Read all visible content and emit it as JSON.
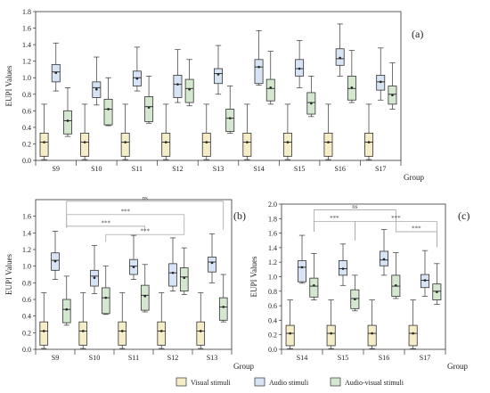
{
  "figure": {
    "legend": [
      {
        "name": "Visual stimuli",
        "color": "#f5edc8"
      },
      {
        "name": "Audio stimuli",
        "color": "#d6e4f5"
      },
      {
        "name": "Audio-visual stimuli",
        "color": "#d3e8cf"
      }
    ]
  },
  "chart_data": [
    {
      "type": "box",
      "panel_label": "(a)",
      "ylabel": "EUPI Values",
      "xlabel": "Group",
      "ylim": [
        0,
        1.8
      ],
      "yticks": [
        0.0,
        0.2,
        0.4,
        0.6,
        0.8,
        1.0,
        1.2,
        1.4,
        1.6,
        1.8
      ],
      "categories": [
        "S9",
        "S10",
        "S11",
        "S12",
        "S13",
        "S14",
        "S15",
        "S16",
        "S17"
      ],
      "series": [
        {
          "name": "Visual stimuli",
          "boxes": [
            {
              "min": 0.01,
              "q1": 0.05,
              "median": 0.22,
              "q3": 0.33,
              "max": 0.68,
              "mean": 0.22
            },
            {
              "min": 0.01,
              "q1": 0.05,
              "median": 0.22,
              "q3": 0.33,
              "max": 0.68,
              "mean": 0.22
            },
            {
              "min": 0.01,
              "q1": 0.05,
              "median": 0.22,
              "q3": 0.33,
              "max": 0.68,
              "mean": 0.22
            },
            {
              "min": 0.01,
              "q1": 0.05,
              "median": 0.22,
              "q3": 0.33,
              "max": 0.68,
              "mean": 0.22
            },
            {
              "min": 0.01,
              "q1": 0.05,
              "median": 0.22,
              "q3": 0.33,
              "max": 0.68,
              "mean": 0.22
            },
            {
              "min": 0.01,
              "q1": 0.05,
              "median": 0.22,
              "q3": 0.33,
              "max": 0.68,
              "mean": 0.22
            },
            {
              "min": 0.01,
              "q1": 0.05,
              "median": 0.22,
              "q3": 0.33,
              "max": 0.68,
              "mean": 0.22
            },
            {
              "min": 0.01,
              "q1": 0.05,
              "median": 0.22,
              "q3": 0.33,
              "max": 0.68,
              "mean": 0.22
            },
            {
              "min": 0.01,
              "q1": 0.05,
              "median": 0.22,
              "q3": 0.33,
              "max": 0.68,
              "mean": 0.22
            }
          ]
        },
        {
          "name": "Audio stimuli",
          "boxes": [
            {
              "min": 0.84,
              "q1": 0.95,
              "median": 1.07,
              "q3": 1.16,
              "max": 1.42,
              "mean": 1.06
            },
            {
              "min": 0.67,
              "q1": 0.76,
              "median": 0.88,
              "q3": 0.95,
              "max": 1.25,
              "mean": 0.86
            },
            {
              "min": 0.84,
              "q1": 0.9,
              "median": 1.0,
              "q3": 1.08,
              "max": 1.37,
              "mean": 0.99
            },
            {
              "min": 0.7,
              "q1": 0.76,
              "median": 0.92,
              "q3": 1.03,
              "max": 1.34,
              "mean": 0.92
            },
            {
              "min": 0.8,
              "q1": 0.93,
              "median": 1.05,
              "q3": 1.11,
              "max": 1.39,
              "mean": 1.04
            },
            {
              "min": 0.91,
              "q1": 0.93,
              "median": 1.13,
              "q3": 1.22,
              "max": 1.57,
              "mean": 1.13
            },
            {
              "min": 0.88,
              "q1": 1.02,
              "median": 1.11,
              "q3": 1.22,
              "max": 1.45,
              "mean": 1.11
            },
            {
              "min": 1.02,
              "q1": 1.15,
              "median": 1.23,
              "q3": 1.35,
              "max": 1.65,
              "mean": 1.24
            },
            {
              "min": 0.73,
              "q1": 0.85,
              "median": 0.95,
              "q3": 1.03,
              "max": 1.36,
              "mean": 0.95
            }
          ]
        },
        {
          "name": "Audio-visual stimuli",
          "boxes": [
            {
              "min": 0.29,
              "q1": 0.32,
              "median": 0.48,
              "q3": 0.6,
              "max": 0.88,
              "mean": 0.48
            },
            {
              "min": 0.42,
              "q1": 0.43,
              "median": 0.62,
              "q3": 0.74,
              "max": 1.0,
              "mean": 0.62
            },
            {
              "min": 0.45,
              "q1": 0.47,
              "median": 0.65,
              "q3": 0.77,
              "max": 1.02,
              "mean": 0.64
            },
            {
              "min": 0.66,
              "q1": 0.7,
              "median": 0.87,
              "q3": 0.98,
              "max": 1.22,
              "mean": 0.86
            },
            {
              "min": 0.33,
              "q1": 0.35,
              "median": 0.51,
              "q3": 0.62,
              "max": 0.9,
              "mean": 0.51
            },
            {
              "min": 0.68,
              "q1": 0.72,
              "median": 0.87,
              "q3": 0.98,
              "max": 1.32,
              "mean": 0.88
            },
            {
              "min": 0.53,
              "q1": 0.56,
              "median": 0.7,
              "q3": 0.82,
              "max": 1.02,
              "mean": 0.69
            },
            {
              "min": 0.7,
              "q1": 0.73,
              "median": 0.87,
              "q3": 1.02,
              "max": 1.33,
              "mean": 0.88
            },
            {
              "min": 0.62,
              "q1": 0.68,
              "median": 0.8,
              "q3": 0.9,
              "max": 1.18,
              "mean": 0.79
            }
          ]
        }
      ]
    },
    {
      "type": "box",
      "panel_label": "(b)",
      "ylabel": "EUPI Values",
      "xlabel": "Group",
      "ylim": [
        0,
        1.8
      ],
      "yticks": [
        0.0,
        0.2,
        0.4,
        0.6,
        0.8,
        1.0,
        1.2,
        1.4,
        1.6
      ],
      "categories": [
        "S9",
        "S10",
        "S11",
        "S12",
        "S13"
      ],
      "series": [
        {
          "name": "Visual stimuli",
          "boxes": [
            {
              "min": 0.01,
              "q1": 0.05,
              "median": 0.22,
              "q3": 0.33,
              "max": 0.68,
              "mean": 0.22
            },
            {
              "min": 0.01,
              "q1": 0.05,
              "median": 0.22,
              "q3": 0.33,
              "max": 0.68,
              "mean": 0.22
            },
            {
              "min": 0.01,
              "q1": 0.05,
              "median": 0.22,
              "q3": 0.33,
              "max": 0.68,
              "mean": 0.22
            },
            {
              "min": 0.01,
              "q1": 0.05,
              "median": 0.22,
              "q3": 0.33,
              "max": 0.68,
              "mean": 0.22
            },
            {
              "min": 0.01,
              "q1": 0.05,
              "median": 0.22,
              "q3": 0.33,
              "max": 0.68,
              "mean": 0.22
            }
          ]
        },
        {
          "name": "Audio stimuli",
          "boxes": [
            {
              "min": 0.84,
              "q1": 0.95,
              "median": 1.07,
              "q3": 1.16,
              "max": 1.42,
              "mean": 1.06
            },
            {
              "min": 0.67,
              "q1": 0.76,
              "median": 0.88,
              "q3": 0.95,
              "max": 1.25,
              "mean": 0.86
            },
            {
              "min": 0.84,
              "q1": 0.9,
              "median": 1.0,
              "q3": 1.08,
              "max": 1.37,
              "mean": 0.99
            },
            {
              "min": 0.7,
              "q1": 0.76,
              "median": 0.92,
              "q3": 1.03,
              "max": 1.34,
              "mean": 0.92
            },
            {
              "min": 0.8,
              "q1": 0.93,
              "median": 1.05,
              "q3": 1.11,
              "max": 1.39,
              "mean": 1.04
            }
          ]
        },
        {
          "name": "Audio-visual stimuli",
          "boxes": [
            {
              "min": 0.29,
              "q1": 0.32,
              "median": 0.48,
              "q3": 0.6,
              "max": 0.88,
              "mean": 0.48
            },
            {
              "min": 0.42,
              "q1": 0.43,
              "median": 0.62,
              "q3": 0.74,
              "max": 1.0,
              "mean": 0.62
            },
            {
              "min": 0.45,
              "q1": 0.47,
              "median": 0.65,
              "q3": 0.77,
              "max": 1.02,
              "mean": 0.64
            },
            {
              "min": 0.66,
              "q1": 0.7,
              "median": 0.87,
              "q3": 0.98,
              "max": 1.22,
              "mean": 0.86
            },
            {
              "min": 0.33,
              "q1": 0.35,
              "median": 0.51,
              "q3": 0.62,
              "max": 0.9,
              "mean": 0.51
            }
          ]
        }
      ],
      "significance": [
        {
          "from": 0,
          "to": 4,
          "label": "ns",
          "level": 1.78
        },
        {
          "from": 0,
          "to": 3,
          "label": "***",
          "level": 1.62
        },
        {
          "from": 0,
          "to": 2,
          "label": "***",
          "level": 1.48
        },
        {
          "from": 1,
          "to": 3,
          "label": "***",
          "level": 1.38
        }
      ]
    },
    {
      "type": "box",
      "panel_label": "(c)",
      "ylabel": "EUPI Values",
      "xlabel": "Group",
      "ylim": [
        0,
        2.0
      ],
      "yticks": [
        0.0,
        0.2,
        0.4,
        0.6,
        0.8,
        1.0,
        1.2,
        1.4,
        1.6,
        1.8,
        2.0
      ],
      "categories": [
        "S14",
        "S15",
        "S16",
        "S17"
      ],
      "series": [
        {
          "name": "Visual stimuli",
          "boxes": [
            {
              "min": 0.01,
              "q1": 0.05,
              "median": 0.22,
              "q3": 0.33,
              "max": 0.68,
              "mean": 0.22
            },
            {
              "min": 0.01,
              "q1": 0.05,
              "median": 0.22,
              "q3": 0.33,
              "max": 0.68,
              "mean": 0.22
            },
            {
              "min": 0.01,
              "q1": 0.05,
              "median": 0.22,
              "q3": 0.33,
              "max": 0.68,
              "mean": 0.22
            },
            {
              "min": 0.01,
              "q1": 0.05,
              "median": 0.22,
              "q3": 0.33,
              "max": 0.68,
              "mean": 0.22
            }
          ]
        },
        {
          "name": "Audio stimuli",
          "boxes": [
            {
              "min": 0.91,
              "q1": 0.93,
              "median": 1.13,
              "q3": 1.22,
              "max": 1.57,
              "mean": 1.13
            },
            {
              "min": 0.88,
              "q1": 1.02,
              "median": 1.11,
              "q3": 1.22,
              "max": 1.45,
              "mean": 1.11
            },
            {
              "min": 1.02,
              "q1": 1.15,
              "median": 1.23,
              "q3": 1.35,
              "max": 1.65,
              "mean": 1.24
            },
            {
              "min": 0.73,
              "q1": 0.85,
              "median": 0.95,
              "q3": 1.03,
              "max": 1.36,
              "mean": 0.95
            }
          ]
        },
        {
          "name": "Audio-visual stimuli",
          "boxes": [
            {
              "min": 0.68,
              "q1": 0.72,
              "median": 0.87,
              "q3": 0.98,
              "max": 1.32,
              "mean": 0.88
            },
            {
              "min": 0.53,
              "q1": 0.56,
              "median": 0.7,
              "q3": 0.82,
              "max": 1.02,
              "mean": 0.69
            },
            {
              "min": 0.7,
              "q1": 0.73,
              "median": 0.87,
              "q3": 1.02,
              "max": 1.33,
              "mean": 0.88
            },
            {
              "min": 0.62,
              "q1": 0.68,
              "median": 0.8,
              "q3": 0.9,
              "max": 1.18,
              "mean": 0.79
            }
          ]
        }
      ],
      "significance": [
        {
          "from": 0,
          "to": 2,
          "label": "ns",
          "level": 1.92
        },
        {
          "from": 0,
          "to": 1,
          "label": "***",
          "level": 1.76
        },
        {
          "from": 1,
          "to": 3,
          "label": "***",
          "level": 1.76
        },
        {
          "from": 2,
          "to": 3,
          "label": "***",
          "level": 1.62
        }
      ]
    }
  ]
}
